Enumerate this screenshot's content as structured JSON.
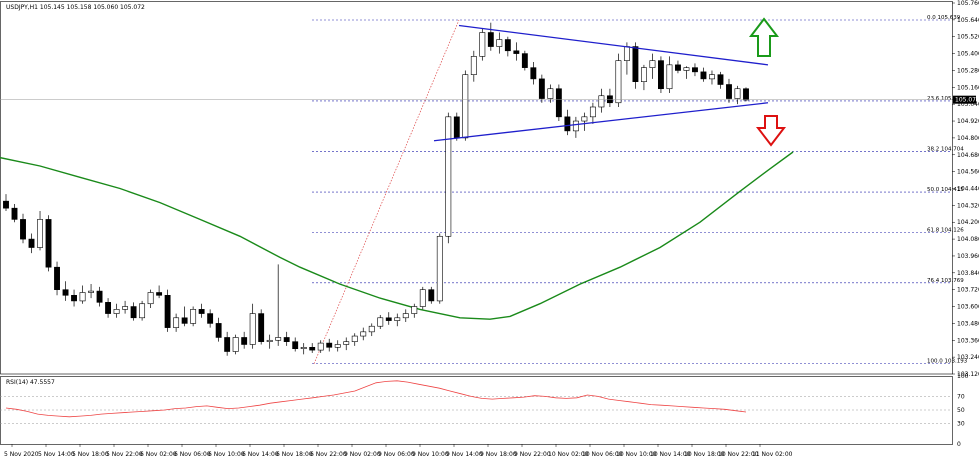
{
  "header": {
    "symbol_text": "USDJPY,H1  105.145 105.158 105.060 105.072"
  },
  "rsi_label": "RSI(14) 47.5557",
  "price_tag": "105.072",
  "colors": {
    "bull_fill": "#ffffff",
    "bear_fill": "#000000",
    "candle_stroke": "#000000",
    "ma": "#1a8a1a",
    "trendline": "#1f1fcc",
    "fib": "#2222aa",
    "rsi_line": "#ee4444",
    "fib_diag": "#dd4444",
    "up_arrow": "#1a9a1a",
    "down_arrow": "#dd1111"
  },
  "icons": {
    "up": "up-arrow-icon",
    "down": "down-arrow-icon"
  },
  "chart_data": {
    "type": "candlestick",
    "symbol": "USDJPY",
    "timeframe": "H1",
    "ohlc_header": {
      "open": 105.145,
      "high": 105.158,
      "low": 105.06,
      "close": 105.072
    },
    "ylim": [
      103.12,
      105.76
    ],
    "y_ticks": [
      105.76,
      105.64,
      105.52,
      105.4,
      105.28,
      105.16,
      105.04,
      104.92,
      104.8,
      104.68,
      104.56,
      104.44,
      104.32,
      104.2,
      104.08,
      103.96,
      103.84,
      103.72,
      103.6,
      103.48,
      103.36,
      103.24,
      103.12
    ],
    "x_ticks": [
      "5 Nov 2020",
      "5 Nov 14:00",
      "5 Nov 18:00",
      "5 Nov 22:00",
      "6 Nov 02:00",
      "6 Nov 06:00",
      "6 Nov 10:00",
      "6 Nov 14:00",
      "6 Nov 18:00",
      "6 Nov 22:00",
      "9 Nov 02:00",
      "9 Nov 06:00",
      "9 Nov 10:00",
      "9 Nov 14:00",
      "9 Nov 18:00",
      "9 Nov 22:00",
      "10 Nov 02:00",
      "10 Nov 06:00",
      "10 Nov 10:00",
      "10 Nov 14:00",
      "10 Nov 18:00",
      "10 Nov 22:00",
      "11 Nov 02:00"
    ],
    "candles": [
      [
        104.35,
        104.4,
        104.28,
        104.3
      ],
      [
        104.3,
        104.33,
        104.2,
        104.22
      ],
      [
        104.22,
        104.26,
        104.05,
        104.08
      ],
      [
        104.08,
        104.12,
        103.98,
        104.02
      ],
      [
        104.02,
        104.28,
        104.0,
        104.22
      ],
      [
        104.22,
        104.25,
        103.85,
        103.88
      ],
      [
        103.88,
        103.92,
        103.68,
        103.72
      ],
      [
        103.72,
        103.78,
        103.64,
        103.68
      ],
      [
        103.68,
        103.72,
        103.6,
        103.64
      ],
      [
        103.64,
        103.75,
        103.62,
        103.7
      ],
      [
        103.7,
        103.76,
        103.66,
        103.71
      ],
      [
        103.71,
        103.74,
        103.6,
        103.63
      ],
      [
        103.63,
        103.66,
        103.52,
        103.55
      ],
      [
        103.55,
        103.62,
        103.52,
        103.58
      ],
      [
        103.58,
        103.64,
        103.55,
        103.6
      ],
      [
        103.6,
        103.63,
        103.5,
        103.52
      ],
      [
        103.52,
        103.64,
        103.5,
        103.62
      ],
      [
        103.62,
        103.72,
        103.59,
        103.7
      ],
      [
        103.7,
        103.75,
        103.66,
        103.68
      ],
      [
        103.68,
        103.72,
        103.42,
        103.45
      ],
      [
        103.45,
        103.55,
        103.42,
        103.52
      ],
      [
        103.52,
        103.6,
        103.46,
        103.48
      ],
      [
        103.48,
        103.6,
        103.46,
        103.58
      ],
      [
        103.58,
        103.62,
        103.52,
        103.55
      ],
      [
        103.55,
        103.58,
        103.45,
        103.48
      ],
      [
        103.48,
        103.52,
        103.35,
        103.38
      ],
      [
        103.38,
        103.42,
        103.25,
        103.28
      ],
      [
        103.28,
        103.4,
        103.26,
        103.38
      ],
      [
        103.38,
        103.42,
        103.3,
        103.33
      ],
      [
        103.33,
        103.62,
        103.3,
        103.55
      ],
      [
        103.55,
        103.58,
        103.33,
        103.35
      ],
      [
        103.35,
        103.4,
        103.3,
        103.36
      ],
      [
        103.36,
        103.9,
        103.32,
        103.38
      ],
      [
        103.38,
        103.42,
        103.32,
        103.35
      ],
      [
        103.35,
        103.38,
        103.28,
        103.3
      ],
      [
        103.3,
        103.34,
        103.26,
        103.31
      ],
      [
        103.31,
        103.34,
        103.27,
        103.29
      ],
      [
        103.29,
        103.36,
        103.27,
        103.34
      ],
      [
        103.34,
        103.37,
        103.28,
        103.31
      ],
      [
        103.31,
        103.36,
        103.28,
        103.33
      ],
      [
        103.33,
        103.38,
        103.29,
        103.35
      ],
      [
        103.35,
        103.41,
        103.32,
        103.39
      ],
      [
        103.39,
        103.45,
        103.36,
        103.42
      ],
      [
        103.42,
        103.48,
        103.39,
        103.46
      ],
      [
        103.46,
        103.54,
        103.44,
        103.52
      ],
      [
        103.52,
        103.56,
        103.47,
        103.5
      ],
      [
        103.5,
        103.55,
        103.46,
        103.52
      ],
      [
        103.52,
        103.58,
        103.49,
        103.55
      ],
      [
        103.55,
        103.62,
        103.52,
        103.6
      ],
      [
        103.6,
        103.74,
        103.58,
        103.72
      ],
      [
        103.72,
        103.74,
        103.62,
        103.64
      ],
      [
        103.64,
        104.12,
        103.62,
        104.1
      ],
      [
        104.1,
        104.98,
        104.05,
        104.95
      ],
      [
        104.95,
        104.98,
        104.78,
        104.8
      ],
      [
        104.8,
        105.28,
        104.78,
        105.25
      ],
      [
        105.25,
        105.42,
        105.2,
        105.38
      ],
      [
        105.38,
        105.58,
        105.35,
        105.55
      ],
      [
        105.55,
        105.62,
        105.42,
        105.45
      ],
      [
        105.45,
        105.55,
        105.4,
        105.5
      ],
      [
        105.5,
        105.52,
        105.38,
        105.42
      ],
      [
        105.42,
        105.48,
        105.35,
        105.4
      ],
      [
        105.4,
        105.42,
        105.28,
        105.3
      ],
      [
        105.3,
        105.34,
        105.18,
        105.22
      ],
      [
        105.22,
        105.25,
        105.05,
        105.08
      ],
      [
        105.08,
        105.18,
        105.05,
        105.15
      ],
      [
        105.15,
        105.18,
        104.92,
        104.95
      ],
      [
        104.95,
        105.0,
        104.82,
        104.85
      ],
      [
        104.85,
        104.95,
        104.8,
        104.92
      ],
      [
        104.92,
        104.98,
        104.85,
        104.95
      ],
      [
        104.95,
        105.05,
        104.9,
        105.02
      ],
      [
        105.02,
        105.15,
        104.98,
        105.1
      ],
      [
        105.1,
        105.15,
        105.02,
        105.05
      ],
      [
        105.05,
        105.4,
        105.02,
        105.35
      ],
      [
        105.35,
        105.48,
        105.25,
        105.45
      ],
      [
        105.45,
        105.48,
        105.15,
        105.2
      ],
      [
        105.2,
        105.32,
        105.14,
        105.3
      ],
      [
        105.3,
        105.4,
        105.22,
        105.35
      ],
      [
        105.35,
        105.38,
        105.12,
        105.15
      ],
      [
        105.15,
        105.38,
        105.12,
        105.32
      ],
      [
        105.32,
        105.35,
        105.26,
        105.28
      ],
      [
        105.28,
        105.31,
        105.22,
        105.3
      ],
      [
        105.3,
        105.33,
        105.24,
        105.27
      ],
      [
        105.27,
        105.3,
        105.2,
        105.22
      ],
      [
        105.22,
        105.28,
        105.18,
        105.25
      ],
      [
        105.25,
        105.27,
        105.15,
        105.18
      ],
      [
        105.18,
        105.22,
        105.05,
        105.08
      ],
      [
        105.08,
        105.17,
        105.04,
        105.15
      ],
      [
        105.15,
        105.16,
        105.06,
        105.07
      ]
    ],
    "moving_average": [
      [
        0,
        104.66
      ],
      [
        40,
        104.6
      ],
      [
        80,
        104.52
      ],
      [
        120,
        104.44
      ],
      [
        160,
        104.34
      ],
      [
        200,
        104.22
      ],
      [
        240,
        104.1
      ],
      [
        280,
        103.95
      ],
      [
        300,
        103.88
      ],
      [
        340,
        103.76
      ],
      [
        380,
        103.66
      ],
      [
        420,
        103.58
      ],
      [
        460,
        103.52
      ],
      [
        490,
        103.51
      ],
      [
        510,
        103.53
      ],
      [
        540,
        103.62
      ],
      [
        580,
        103.76
      ],
      [
        620,
        103.88
      ],
      [
        660,
        104.02
      ],
      [
        700,
        104.2
      ],
      [
        740,
        104.42
      ],
      [
        770,
        104.58
      ],
      [
        793,
        104.7
      ]
    ],
    "trendlines": [
      {
        "name": "upper",
        "from": [
          459,
          105.6
        ],
        "to": [
          768,
          105.32
        ]
      },
      {
        "name": "lower",
        "from": [
          434,
          104.78
        ],
        "to": [
          768,
          105.05
        ]
      }
    ],
    "fibonacci": [
      {
        "level": "0.0",
        "price": 105.639
      },
      {
        "level": "23.6",
        "price": 105.063
      },
      {
        "level": "38.2",
        "price": 104.704
      },
      {
        "level": "50.0",
        "price": 104.415
      },
      {
        "level": "61.8",
        "price": 104.126
      },
      {
        "level": "76.4",
        "price": 103.769
      },
      {
        "level": "100.0",
        "price": 103.193
      }
    ],
    "rsi": {
      "period": 14,
      "last": 47.5557,
      "ylim": [
        0,
        100
      ],
      "ticks": [
        100,
        70,
        50,
        30,
        0
      ],
      "values": [
        53,
        51,
        48,
        44,
        42,
        41,
        40,
        41,
        42,
        44,
        45,
        46,
        47,
        48,
        49,
        50,
        52,
        53,
        55,
        56,
        54,
        52,
        53,
        55,
        57,
        60,
        62,
        64,
        66,
        68,
        70,
        72,
        75,
        78,
        84,
        90,
        92,
        93,
        91,
        88,
        85,
        82,
        78,
        74,
        70,
        67,
        66,
        67,
        68,
        69,
        71,
        70,
        68,
        67,
        68,
        72,
        70,
        66,
        64,
        62,
        60,
        58,
        57,
        56,
        55,
        54,
        53,
        52,
        51,
        49,
        47
      ]
    }
  }
}
